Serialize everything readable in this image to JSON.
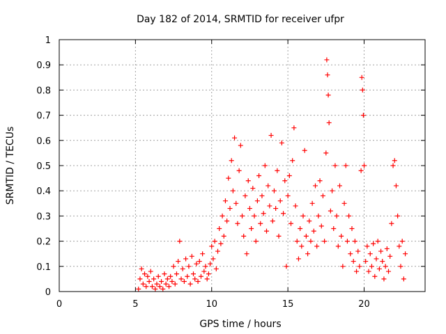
{
  "chart_data": {
    "type": "scatter",
    "title": "Day 182 of 2014, SRMTID for receiver ufpr",
    "xlabel": "GPS time / hours",
    "ylabel": "SRMTID / TECUs",
    "xlim": [
      0,
      24
    ],
    "ylim": [
      0,
      1
    ],
    "xticks": [
      0,
      5,
      10,
      15,
      20
    ],
    "xtick_labels": [
      "0",
      "5",
      "10",
      "15",
      "20"
    ],
    "yticks": [
      0,
      0.1,
      0.2,
      0.3,
      0.4,
      0.5,
      0.6,
      0.7,
      0.8,
      0.9,
      1
    ],
    "ytick_labels": [
      "0",
      "0.1",
      "0.2",
      "0.3",
      "0.4",
      "0.5",
      "0.6",
      "0.7",
      "0.8",
      "0.9",
      "1"
    ],
    "grid": true,
    "marker": "+",
    "color": "#ff0000",
    "series": [
      {
        "name": "SRMTID",
        "points": [
          [
            5.2,
            0.01
          ],
          [
            5.3,
            0.05
          ],
          [
            5.4,
            0.09
          ],
          [
            5.5,
            0.03
          ],
          [
            5.6,
            0.07
          ],
          [
            5.7,
            0.02
          ],
          [
            5.8,
            0.06
          ],
          [
            5.9,
            0.04
          ],
          [
            6.0,
            0.08
          ],
          [
            6.1,
            0.02
          ],
          [
            6.2,
            0.05
          ],
          [
            6.3,
            0.01
          ],
          [
            6.4,
            0.03
          ],
          [
            6.5,
            0.06
          ],
          [
            6.6,
            0.02
          ],
          [
            6.7,
            0.04
          ],
          [
            6.8,
            0.01
          ],
          [
            6.9,
            0.07
          ],
          [
            7.0,
            0.03
          ],
          [
            7.1,
            0.05
          ],
          [
            7.2,
            0.02
          ],
          [
            7.3,
            0.06
          ],
          [
            7.4,
            0.04
          ],
          [
            7.5,
            0.1
          ],
          [
            7.6,
            0.03
          ],
          [
            7.7,
            0.07
          ],
          [
            7.8,
            0.12
          ],
          [
            7.9,
            0.2
          ],
          [
            8.0,
            0.05
          ],
          [
            8.1,
            0.09
          ],
          [
            8.2,
            0.04
          ],
          [
            8.3,
            0.13
          ],
          [
            8.4,
            0.06
          ],
          [
            8.5,
            0.1
          ],
          [
            8.6,
            0.03
          ],
          [
            8.7,
            0.14
          ],
          [
            8.8,
            0.07
          ],
          [
            8.9,
            0.05
          ],
          [
            9.0,
            0.11
          ],
          [
            9.1,
            0.04
          ],
          [
            9.2,
            0.12
          ],
          [
            9.3,
            0.06
          ],
          [
            9.4,
            0.15
          ],
          [
            9.5,
            0.08
          ],
          [
            9.6,
            0.1
          ],
          [
            9.7,
            0.05
          ],
          [
            9.8,
            0.07
          ],
          [
            9.9,
            0.11
          ],
          [
            10.0,
            0.18
          ],
          [
            10.1,
            0.13
          ],
          [
            10.2,
            0.2
          ],
          [
            10.3,
            0.09
          ],
          [
            10.4,
            0.16
          ],
          [
            10.5,
            0.25
          ],
          [
            10.6,
            0.19
          ],
          [
            10.7,
            0.3
          ],
          [
            10.8,
            0.22
          ],
          [
            10.9,
            0.36
          ],
          [
            11.0,
            0.28
          ],
          [
            11.1,
            0.45
          ],
          [
            11.2,
            0.33
          ],
          [
            11.3,
            0.52
          ],
          [
            11.4,
            0.4
          ],
          [
            11.5,
            0.61
          ],
          [
            11.6,
            0.35
          ],
          [
            11.7,
            0.27
          ],
          [
            11.8,
            0.48
          ],
          [
            11.9,
            0.58
          ],
          [
            12.0,
            0.3
          ],
          [
            12.1,
            0.22
          ],
          [
            12.2,
            0.38
          ],
          [
            12.3,
            0.15
          ],
          [
            12.4,
            0.44
          ],
          [
            12.5,
            0.33
          ],
          [
            12.6,
            0.25
          ],
          [
            12.7,
            0.41
          ],
          [
            12.8,
            0.3
          ],
          [
            12.9,
            0.2
          ],
          [
            13.0,
            0.36
          ],
          [
            13.1,
            0.46
          ],
          [
            13.2,
            0.27
          ],
          [
            13.3,
            0.38
          ],
          [
            13.4,
            0.31
          ],
          [
            13.5,
            0.5
          ],
          [
            13.6,
            0.24
          ],
          [
            13.7,
            0.42
          ],
          [
            13.8,
            0.34
          ],
          [
            13.9,
            0.62
          ],
          [
            14.0,
            0.28
          ],
          [
            14.1,
            0.4
          ],
          [
            14.2,
            0.33
          ],
          [
            14.3,
            0.48
          ],
          [
            14.4,
            0.22
          ],
          [
            14.5,
            0.36
          ],
          [
            14.6,
            0.59
          ],
          [
            14.7,
            0.31
          ],
          [
            14.8,
            0.44
          ],
          [
            14.9,
            0.1
          ],
          [
            15.0,
            0.38
          ],
          [
            15.1,
            0.46
          ],
          [
            15.2,
            0.27
          ],
          [
            15.3,
            0.52
          ],
          [
            15.4,
            0.65
          ],
          [
            15.5,
            0.34
          ],
          [
            15.6,
            0.2
          ],
          [
            15.7,
            0.13
          ],
          [
            15.8,
            0.25
          ],
          [
            15.9,
            0.18
          ],
          [
            16.0,
            0.3
          ],
          [
            16.1,
            0.56
          ],
          [
            16.2,
            0.22
          ],
          [
            16.3,
            0.15
          ],
          [
            16.4,
            0.28
          ],
          [
            16.5,
            0.2
          ],
          [
            16.6,
            0.35
          ],
          [
            16.7,
            0.24
          ],
          [
            16.8,
            0.42
          ],
          [
            16.9,
            0.18
          ],
          [
            17.0,
            0.3
          ],
          [
            17.1,
            0.44
          ],
          [
            17.2,
            0.26
          ],
          [
            17.3,
            0.38
          ],
          [
            17.4,
            0.2
          ],
          [
            17.5,
            0.55
          ],
          [
            17.55,
            0.92
          ],
          [
            17.6,
            0.86
          ],
          [
            17.65,
            0.78
          ],
          [
            17.7,
            0.67
          ],
          [
            17.8,
            0.32
          ],
          [
            17.9,
            0.4
          ],
          [
            18.0,
            0.25
          ],
          [
            18.1,
            0.5
          ],
          [
            18.2,
            0.3
          ],
          [
            18.3,
            0.18
          ],
          [
            18.4,
            0.42
          ],
          [
            18.5,
            0.22
          ],
          [
            18.6,
            0.1
          ],
          [
            18.7,
            0.35
          ],
          [
            18.8,
            0.5
          ],
          [
            18.9,
            0.2
          ],
          [
            19.0,
            0.3
          ],
          [
            19.1,
            0.15
          ],
          [
            19.2,
            0.25
          ],
          [
            19.3,
            0.12
          ],
          [
            19.4,
            0.2
          ],
          [
            19.5,
            0.08
          ],
          [
            19.6,
            0.16
          ],
          [
            19.7,
            0.1
          ],
          [
            19.8,
            0.48
          ],
          [
            19.85,
            0.85
          ],
          [
            19.9,
            0.8
          ],
          [
            19.95,
            0.7
          ],
          [
            20.0,
            0.5
          ],
          [
            20.1,
            0.12
          ],
          [
            20.2,
            0.18
          ],
          [
            20.3,
            0.08
          ],
          [
            20.4,
            0.15
          ],
          [
            20.5,
            0.1
          ],
          [
            20.6,
            0.19
          ],
          [
            20.7,
            0.06
          ],
          [
            20.8,
            0.13
          ],
          [
            20.9,
            0.2
          ],
          [
            21.0,
            0.09
          ],
          [
            21.1,
            0.16
          ],
          [
            21.2,
            0.12
          ],
          [
            21.3,
            0.05
          ],
          [
            21.4,
            0.1
          ],
          [
            21.5,
            0.17
          ],
          [
            21.6,
            0.08
          ],
          [
            21.7,
            0.14
          ],
          [
            21.8,
            0.27
          ],
          [
            21.9,
            0.5
          ],
          [
            22.0,
            0.52
          ],
          [
            22.1,
            0.42
          ],
          [
            22.2,
            0.3
          ],
          [
            22.3,
            0.18
          ],
          [
            22.4,
            0.1
          ],
          [
            22.5,
            0.2
          ],
          [
            22.6,
            0.05
          ],
          [
            22.7,
            0.15
          ]
        ]
      }
    ]
  }
}
